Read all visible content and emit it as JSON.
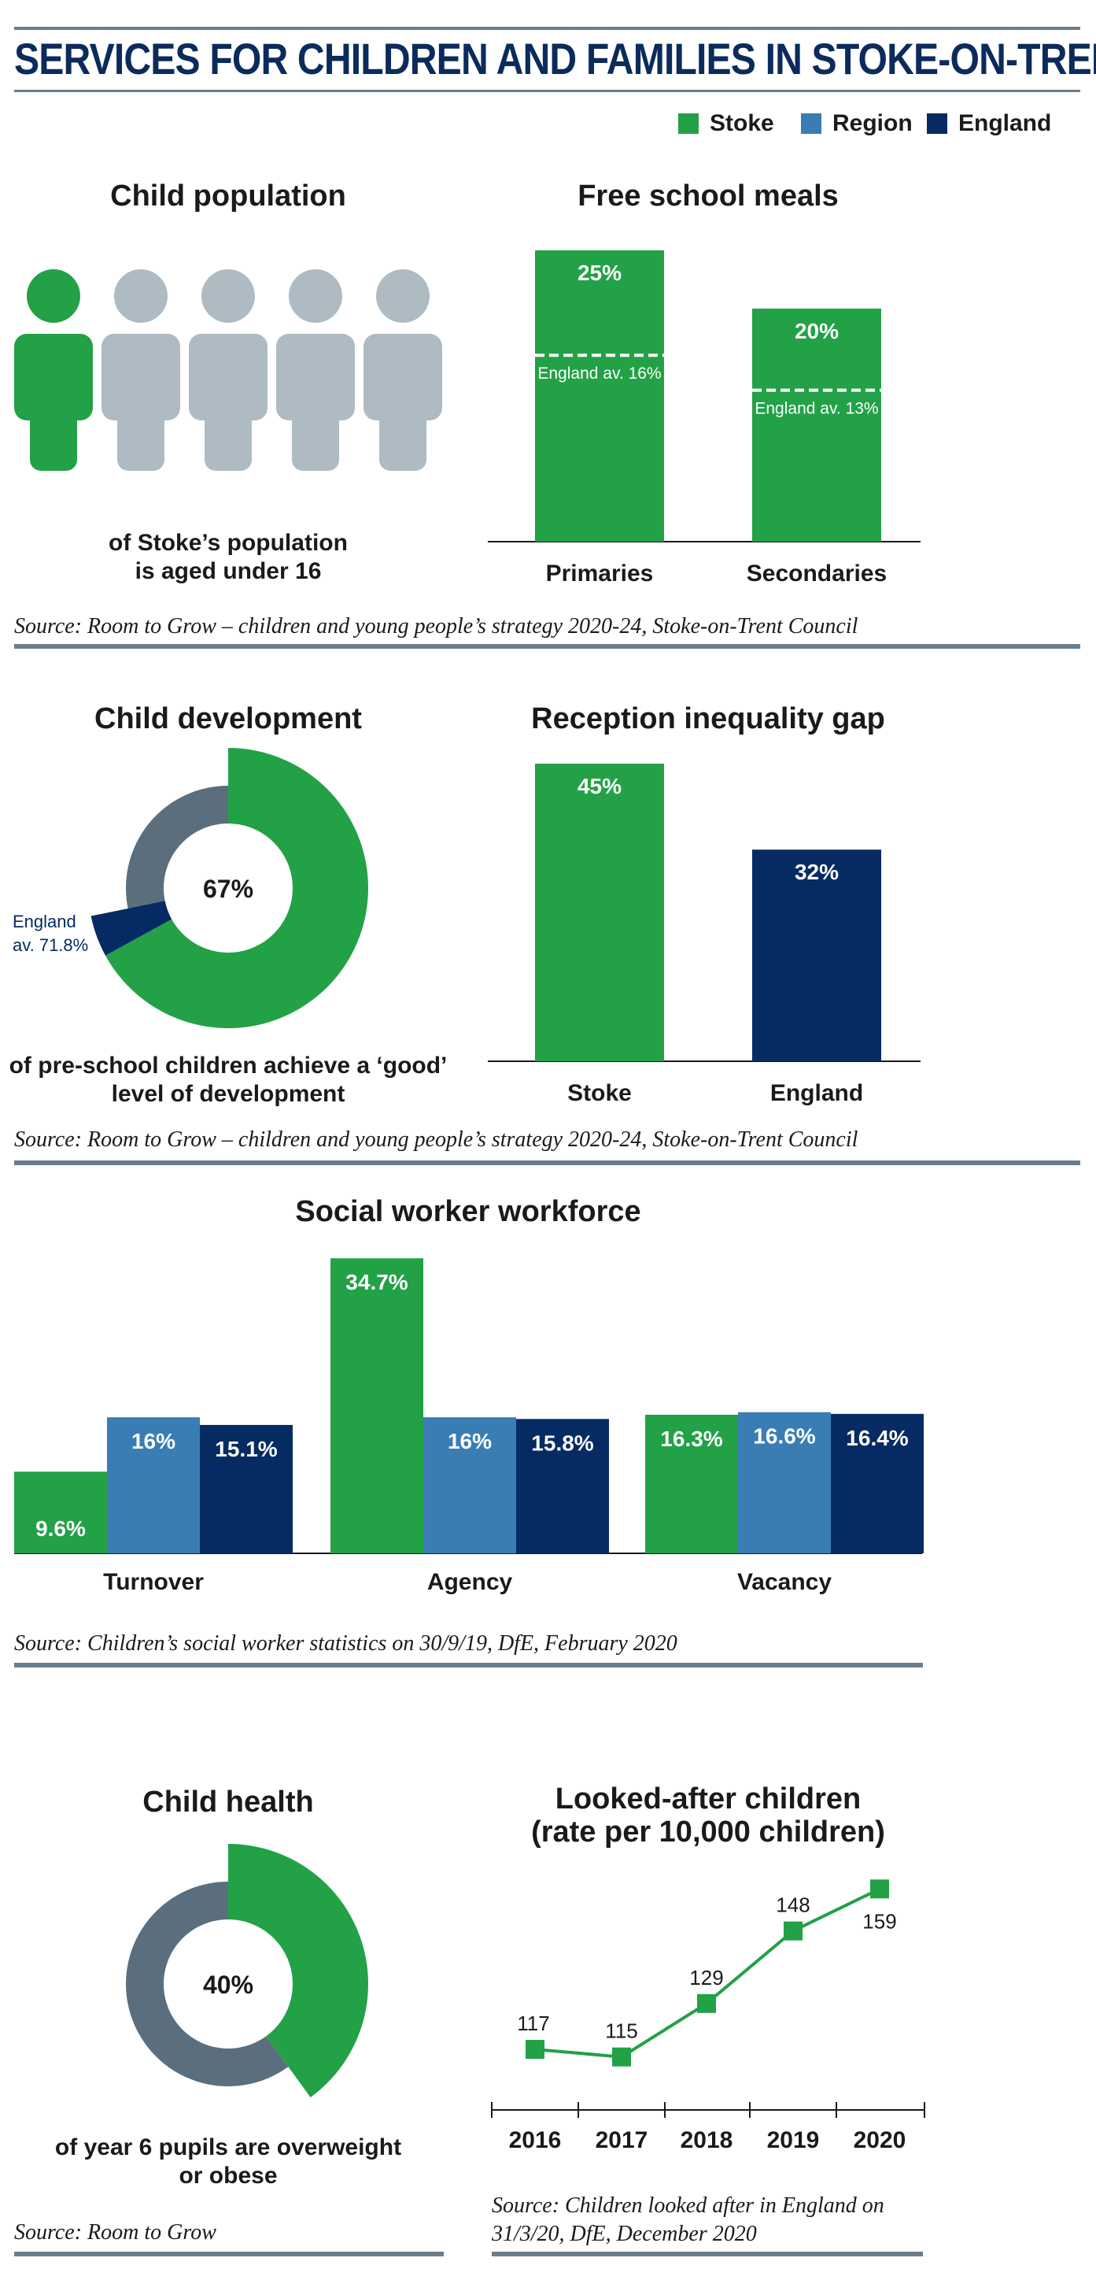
{
  "title": "SERVICES FOR CHILDREN AND FAMILIES IN STOKE-ON-TRENT",
  "colors": {
    "stoke": "#22a146",
    "region": "#3a7db5",
    "england": "#062b63",
    "grey": "#aebbc3",
    "slate": "#5a6e7d"
  },
  "legend": [
    {
      "label": "Stoke",
      "color": "#22a146"
    },
    {
      "label": "Region",
      "color": "#3a7db5"
    },
    {
      "label": "England",
      "color": "#062b63"
    }
  ],
  "child_population": {
    "heading": "Child population",
    "caption_line1": "of Stoke’s population",
    "caption_line2": "is aged under 16",
    "icons_total": 5,
    "icons_highlighted": 1
  },
  "free_school_meals": {
    "heading": "Free school meals",
    "categories": [
      "Primaries",
      "Secondaries"
    ],
    "values": [
      25,
      20
    ],
    "value_labels": [
      "25%",
      "20%"
    ],
    "benchmarks": [
      16,
      13
    ],
    "benchmark_labels": [
      "England av. 16%",
      "England av. 13%"
    ]
  },
  "source_1": "Source: Room to Grow – children and young people’s strategy 2020-24, Stoke-on-Trent Council",
  "child_development": {
    "heading": "Child development",
    "value": 67,
    "value_label": "67%",
    "england_value": 71.8,
    "england_label_line1": "England",
    "england_label_line2": "av. 71.8%",
    "caption_line1": "of pre-school children achieve a ‘good’",
    "caption_line2": "level of development"
  },
  "reception_gap": {
    "heading": "Reception inequality gap",
    "categories": [
      "Stoke",
      "England"
    ],
    "values": [
      45,
      32
    ],
    "value_labels": [
      "45%",
      "32%"
    ]
  },
  "source_2": "Source: Room to Grow – children and young people’s strategy 2020-24, Stoke-on-Trent Council",
  "social_worker": {
    "heading": "Social worker workforce",
    "categories": [
      "Turnover",
      "Agency",
      "Vacancy"
    ],
    "series": [
      {
        "name": "Stoke",
        "values": [
          9.6,
          34.7,
          16.3
        ],
        "labels": [
          "9.6%",
          "34.7%",
          "16.3%"
        ]
      },
      {
        "name": "Region",
        "values": [
          16,
          16,
          16.6
        ],
        "labels": [
          "16%",
          "16%",
          "16.6%"
        ]
      },
      {
        "name": "England",
        "values": [
          15.1,
          15.8,
          16.4
        ],
        "labels": [
          "15.1%",
          "15.8%",
          "16.4%"
        ]
      }
    ]
  },
  "source_3": "Source: Children’s social worker statistics on 30/9/19, DfE, February 2020",
  "child_health": {
    "heading": "Child health",
    "value": 40,
    "value_label": "40%",
    "caption_line1": "of year 6 pupils are overweight",
    "caption_line2": "or obese"
  },
  "source_4": "Source: Room to Grow",
  "looked_after": {
    "heading_line1": "Looked-after children",
    "heading_line2": "(rate per 10,000 children)",
    "x": [
      "2016",
      "2017",
      "2018",
      "2019",
      "2020"
    ],
    "values": [
      117,
      115,
      129,
      148,
      159
    ],
    "labels": [
      "117",
      "115",
      "129",
      "148",
      "159"
    ]
  },
  "source_5_line1": "Source: Children looked after in England on",
  "source_5_line2": "31/3/20, DfE, December 2020",
  "chart_data": [
    {
      "type": "pictogram",
      "title": "Child population",
      "highlighted": 1,
      "total": 5
    },
    {
      "type": "bar",
      "title": "Free school meals",
      "categories": [
        "Primaries",
        "Secondaries"
      ],
      "values": [
        25,
        20
      ],
      "reference": [
        16,
        13
      ]
    },
    {
      "type": "pie",
      "title": "Child development",
      "values": [
        67
      ],
      "reference": 71.8
    },
    {
      "type": "bar",
      "title": "Reception inequality gap",
      "categories": [
        "Stoke",
        "England"
      ],
      "values": [
        45,
        32
      ]
    },
    {
      "type": "bar",
      "title": "Social worker workforce",
      "categories": [
        "Turnover",
        "Agency",
        "Vacancy"
      ],
      "series": [
        {
          "name": "Stoke",
          "values": [
            9.6,
            34.7,
            16.3
          ]
        },
        {
          "name": "Region",
          "values": [
            16,
            16,
            16.6
          ]
        },
        {
          "name": "England",
          "values": [
            15.1,
            15.8,
            16.4
          ]
        }
      ]
    },
    {
      "type": "pie",
      "title": "Child health",
      "values": [
        40
      ]
    },
    {
      "type": "line",
      "title": "Looked-after children (rate per 10,000 children)",
      "x": [
        "2016",
        "2017",
        "2018",
        "2019",
        "2020"
      ],
      "values": [
        117,
        115,
        129,
        148,
        159
      ]
    }
  ]
}
